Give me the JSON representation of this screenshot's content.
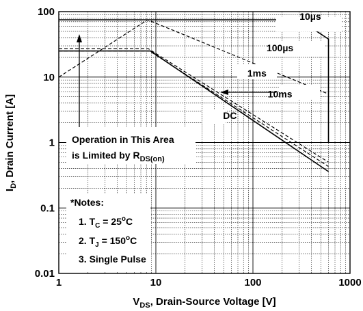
{
  "chart_data": {
    "type": "line",
    "title": "",
    "x_scale": "log",
    "y_scale": "log",
    "xlim": [
      1,
      1000
    ],
    "ylim": [
      0.01,
      100
    ],
    "x_ticks": [
      "1",
      "10",
      "100",
      "1000"
    ],
    "y_ticks": [
      "100",
      "10",
      "1",
      "0.1",
      "0.01"
    ],
    "xlabel": {
      "main": "V",
      "sub": "DS",
      "rest": ", Drain-Source Voltage [V]"
    },
    "ylabel": {
      "main": "I",
      "sub": "D",
      "rest": ", Drain Current [A]"
    },
    "grid": true,
    "series": [
      {
        "name": "10µs",
        "style": "solid",
        "points": [
          [
            1,
            75
          ],
          [
            300,
            75
          ],
          [
            600,
            38
          ],
          [
            600,
            1
          ]
        ]
      },
      {
        "name": "100µs",
        "style": "dashed",
        "points": [
          [
            1,
            10
          ],
          [
            8.2,
            75
          ],
          [
            600,
            5.5
          ]
        ]
      },
      {
        "name": "1ms",
        "style": "dashed",
        "points": [
          [
            1,
            27
          ],
          [
            8.4,
            27
          ],
          [
            600,
            0.5
          ]
        ]
      },
      {
        "name": "10ms",
        "style": "dashed",
        "points": [
          [
            1,
            25
          ],
          [
            8.6,
            25
          ],
          [
            600,
            0.43
          ]
        ]
      },
      {
        "name": "DC",
        "style": "solid",
        "points": [
          [
            1,
            25
          ],
          [
            8.8,
            25
          ],
          [
            600,
            0.36
          ]
        ]
      }
    ],
    "series_labels": [
      {
        "text": "10µs",
        "x": 390,
        "y": 85
      },
      {
        "text": "100µs",
        "x": 190,
        "y": 28
      },
      {
        "text": "1ms",
        "x": 110,
        "y": 11.5
      },
      {
        "text": "10ms",
        "x": 190,
        "y": 5.5
      },
      {
        "text": "DC",
        "x": 58,
        "y": 2.6
      }
    ],
    "annotations": {
      "operation_line1": "Operation in This Area",
      "operation_line2_main": "is Limited by R",
      "operation_line2_sub": "DS(on)",
      "notes_title": "*Notes:",
      "note1": {
        "pre": "1. T",
        "sub": "C",
        "mid": " = 25",
        "sup": "o",
        "post": "C"
      },
      "note2": {
        "pre": "2. T",
        "sub": "J",
        "mid": " = 150",
        "sup": "o",
        "post": "C"
      },
      "note3": "3. Single Pulse"
    }
  }
}
